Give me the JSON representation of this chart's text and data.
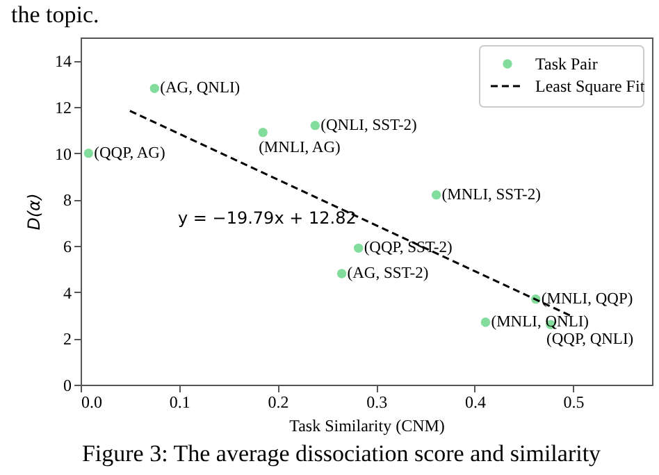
{
  "chart_data": {
    "type": "scatter",
    "xlabel": "Task Similarity (CNM)",
    "ylabel": "D(α)",
    "xlim": [
      0,
      0.58
    ],
    "ylim": [
      0,
      15
    ],
    "xticks": [
      {
        "value": 0,
        "label": "0.0"
      },
      0.1,
      0.2,
      0.3,
      0.4,
      0.5
    ],
    "yticks": [
      0,
      2,
      4,
      6,
      8,
      10,
      12,
      14
    ],
    "grid": false,
    "legend": "top right",
    "series": [
      {
        "name": "Task Pair",
        "marker": "circle",
        "color": "#82dc9c",
        "x": [
          0.008,
          0.075,
          0.185,
          0.238,
          0.361,
          0.282,
          0.265,
          0.462,
          0.411,
          0.477
        ],
        "values": [
          10.0,
          12.8,
          10.9,
          11.2,
          8.2,
          5.9,
          4.8,
          3.7,
          2.7,
          2.6
        ]
      },
      {
        "name": "Least Square Fit",
        "type": "line",
        "color": "#000000",
        "line_style": "dashed",
        "x": [
          0.05,
          0.5
        ],
        "values": [
          11.83,
          2.93
        ]
      }
    ],
    "annotations": [
      {
        "text": "(QQP, AG)",
        "x": 0.008,
        "y": 10.0
      },
      {
        "text": "(AG, QNLI)",
        "x": 0.075,
        "y": 12.8
      },
      {
        "text": "(MNLI, AG)",
        "x": 0.185,
        "y": 10.9
      },
      {
        "text": "(QNLI, SST-2)",
        "x": 0.238,
        "y": 11.2
      },
      {
        "text": "(MNLI, SST-2)",
        "x": 0.361,
        "y": 8.2
      },
      {
        "text": "(QQP, SST-2)",
        "x": 0.282,
        "y": 5.9
      },
      {
        "text": "(AG, SST-2)",
        "x": 0.265,
        "y": 4.8
      },
      {
        "text": "(MNLI, QQP)",
        "x": 0.462,
        "y": 3.7
      },
      {
        "text": "(MNLI, QNLI)",
        "x": 0.411,
        "y": 2.7
      },
      {
        "text": "(QQP, QNLI)",
        "x": 0.477,
        "y": 2.6
      },
      "the topic.",
      "y = −19.79x + 12.82",
      "Figure 3: The average dissociation score and similarity"
    ]
  }
}
